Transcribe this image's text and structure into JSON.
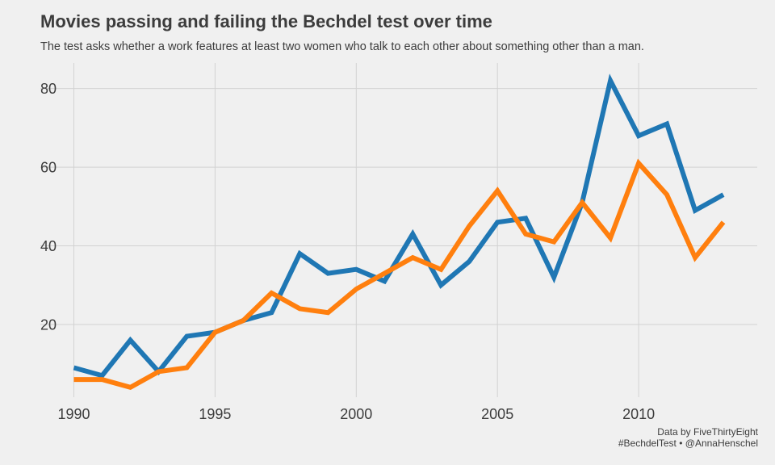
{
  "chart_data": {
    "type": "line",
    "title": "Movies passing and failing the Bechdel test over time",
    "subtitle": "The test asks whether a work features at least two women who talk to each other about something other than a man.",
    "caption": [
      "Data by FiveThirtyEight",
      "#BechdelTest • @AnnaHenschel"
    ],
    "xlabel": "",
    "ylabel": "",
    "x": [
      1990,
      1991,
      1992,
      1993,
      1994,
      1995,
      1996,
      1997,
      1998,
      1999,
      2000,
      2001,
      2002,
      2003,
      2004,
      2005,
      2006,
      2007,
      2008,
      2009,
      2010,
      2011,
      2012,
      2013
    ],
    "xticks": [
      1990,
      1995,
      2000,
      2005,
      2010
    ],
    "yticks": [
      20,
      40,
      60,
      80
    ],
    "xlim": [
      1989.9,
      2014.2
    ],
    "ylim": [
      1.5,
      86.5
    ],
    "grid": true,
    "legend": "none",
    "series": [
      {
        "color": "#1f77b4",
        "values": [
          9,
          7,
          16,
          8,
          17,
          18,
          21,
          23,
          38,
          33,
          34,
          31,
          43,
          30,
          36,
          46,
          47,
          32,
          51,
          82,
          68,
          71,
          49,
          53
        ]
      },
      {
        "color": "#ff7f0e",
        "values": [
          6,
          6,
          4,
          8,
          9,
          18,
          21,
          28,
          24,
          23,
          29,
          33,
          37,
          34,
          45,
          54,
          43,
          41,
          51,
          42,
          61,
          53,
          37,
          46
        ]
      }
    ]
  }
}
